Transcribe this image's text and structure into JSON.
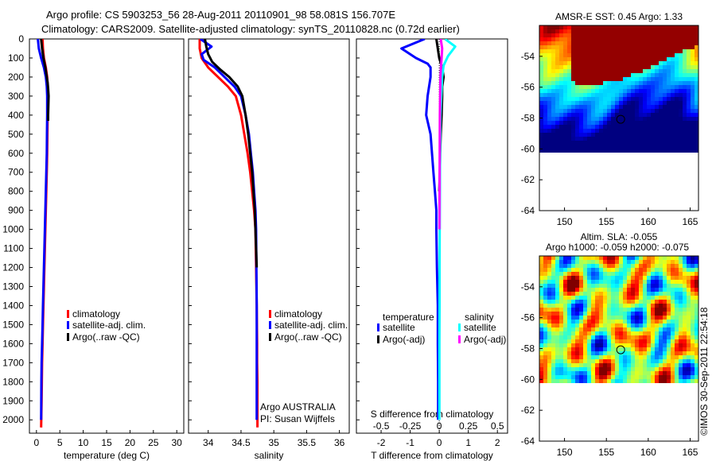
{
  "header": {
    "line1": "Argo profile: CS 5903253_56 28-Aug-2011 20110901_98 58.081S 156.707E",
    "line2": "Climatology: CARS2009. Satellite-adjusted climatology: synTS_20110828.nc (0.72d earlier)"
  },
  "credit": "©IMOS 30-Sep-2011 22:54:18",
  "colors": {
    "climatology": "#ff0000",
    "satellite": "#0000ff",
    "argo": "#000000",
    "sal_satellite": "#00ffff",
    "sal_argo": "#ff00ff"
  },
  "chart_data": [
    {
      "id": "temperature",
      "type": "line",
      "xlabel": "temperature (deg C)",
      "xlim": [
        -1.5,
        31.5
      ],
      "xticks": [
        0,
        5,
        10,
        15,
        20,
        25,
        30
      ],
      "ylim": [
        2070,
        0
      ],
      "yticks": [
        0,
        100,
        200,
        300,
        400,
        500,
        600,
        700,
        800,
        900,
        1000,
        1100,
        1200,
        1300,
        1400,
        1500,
        1600,
        1700,
        1800,
        1900,
        2000
      ],
      "legend": {
        "placement": "lower-right",
        "entries": [
          "climatology",
          "satellite-adj. clim.",
          "Argo(..raw -QC)"
        ]
      },
      "series": [
        {
          "name": "climatology",
          "color": "#ff0000",
          "x": [
            1.3,
            1.4,
            1.6,
            2.0,
            2.3,
            2.4,
            2.4,
            2.4,
            2.35,
            2.3,
            2.2,
            2.1,
            2.0,
            1.9,
            1.8,
            1.7,
            1.6,
            1.5,
            1.4,
            1.3,
            1.2,
            1.15,
            1.1,
            1.0
          ],
          "y": [
            0,
            50,
            100,
            150,
            200,
            250,
            300,
            400,
            500,
            600,
            700,
            800,
            900,
            1000,
            1100,
            1200,
            1300,
            1400,
            1500,
            1600,
            1700,
            1800,
            1900,
            2040
          ]
        },
        {
          "name": "satellite-adj. clim.",
          "color": "#0000ff",
          "x": [
            0.3,
            0.5,
            1.0,
            1.6,
            2.0,
            2.2,
            2.3,
            2.3,
            2.25,
            2.2,
            2.1,
            2.0,
            1.9,
            1.8,
            1.7,
            1.6,
            1.5,
            1.4,
            1.3,
            1.2,
            1.1,
            1.05,
            1.0
          ],
          "y": [
            0,
            50,
            100,
            150,
            200,
            250,
            300,
            400,
            500,
            600,
            700,
            800,
            900,
            1000,
            1100,
            1200,
            1300,
            1400,
            1500,
            1600,
            1700,
            1800,
            2000
          ]
        },
        {
          "name": "Argo(..raw -QC)",
          "color": "#000000",
          "x": [
            1.0,
            1.2,
            1.5,
            1.9,
            2.2,
            2.4,
            2.5,
            2.6,
            2.55,
            2.5,
            2.5
          ],
          "y": [
            0,
            50,
            100,
            150,
            200,
            230,
            260,
            300,
            350,
            400,
            430
          ]
        }
      ]
    },
    {
      "id": "salinity",
      "type": "line",
      "xlabel": "salinity",
      "xlim": [
        33.7,
        36.15
      ],
      "xticks": [
        34,
        34.5,
        35,
        35.5,
        36
      ],
      "ylim": [
        2070,
        0
      ],
      "legend": {
        "placement": "lower-right",
        "entries": [
          "climatology",
          "satellite-adj. clim.",
          "Argo(..raw -QC)"
        ]
      },
      "annotation": {
        "line1": "Argo AUSTRALIA",
        "line2": "PI: Susan Wijffels"
      },
      "series": [
        {
          "name": "climatology",
          "color": "#ff0000",
          "x": [
            33.87,
            33.87,
            33.9,
            34.0,
            34.15,
            34.3,
            34.42,
            34.5,
            34.55,
            34.6,
            34.64,
            34.67,
            34.7,
            34.72,
            34.73,
            34.74,
            34.745,
            34.745,
            34.75,
            34.75,
            34.75
          ],
          "y": [
            0,
            50,
            100,
            150,
            200,
            250,
            300,
            400,
            500,
            600,
            700,
            800,
            900,
            1000,
            1200,
            1400,
            1600,
            1700,
            1800,
            1900,
            2040
          ]
        },
        {
          "name": "satellite-adj. clim.",
          "color": "#0000ff",
          "x": [
            33.88,
            34.05,
            33.9,
            33.93,
            34.1,
            34.25,
            34.4,
            34.5,
            34.57,
            34.62,
            34.65,
            34.68,
            34.7,
            34.72,
            34.73,
            34.735,
            34.74,
            34.74,
            34.74,
            34.74
          ],
          "y": [
            0,
            40,
            80,
            110,
            150,
            200,
            250,
            300,
            400,
            500,
            600,
            700,
            800,
            900,
            1000,
            1200,
            1400,
            1600,
            1800,
            2000
          ]
        },
        {
          "name": "Argo(..raw -QC)",
          "color": "#000000",
          "x": [
            33.95,
            33.97,
            34.0,
            34.06,
            34.18,
            34.32,
            34.45,
            34.52,
            34.57,
            34.61,
            34.64,
            34.67,
            34.69,
            34.71,
            34.72,
            34.73,
            34.74
          ],
          "y": [
            0,
            40,
            80,
            120,
            160,
            200,
            250,
            300,
            400,
            500,
            600,
            700,
            800,
            900,
            1000,
            1100,
            1200
          ]
        }
      ]
    },
    {
      "id": "difference",
      "type": "line",
      "xlabel": "T difference from climatology",
      "x2label": "S difference from climatology",
      "xlim": [
        -2.85,
        2.35
      ],
      "xticks": [
        -2,
        -1,
        0,
        1,
        2
      ],
      "x2lim": [
        -0.7125,
        0.5875
      ],
      "x2ticks": [
        -0.5,
        -0.25,
        0,
        0.25,
        0.5
      ],
      "x2ticklabels": [
        "-0.5",
        "-0.25",
        "0",
        "0.25",
        "0.5"
      ],
      "ylim": [
        2070,
        0
      ],
      "legend": {
        "placement": "lower",
        "temperature_title": "temperature",
        "salinity_title": "salinity",
        "temperature_entries": [
          "satellite",
          "Argo(-adj)"
        ],
        "salinity_entries": [
          "satellite",
          "Argo(-adj)"
        ]
      },
      "series": [
        {
          "name": "temperature satellite",
          "color": "#0000ff",
          "x": [
            -0.5,
            -1.3,
            -0.8,
            -0.4,
            -0.3,
            -0.3,
            -0.4,
            -0.45,
            -0.3,
            -0.25,
            -0.2,
            -0.15,
            -0.1,
            -0.1,
            -0.08,
            -0.05,
            -0.05,
            -0.04,
            -0.04,
            -0.04
          ],
          "y": [
            0,
            50,
            100,
            130,
            150,
            200,
            300,
            400,
            500,
            600,
            700,
            800,
            900,
            1000,
            1200,
            1400,
            1600,
            1800,
            1900,
            2000
          ]
        },
        {
          "name": "temperature Argo(-adj)",
          "color": "#000000",
          "x": [
            -0.1,
            -0.05,
            0.0,
            0.1,
            0.15,
            0.1,
            0.1,
            0.08,
            0.05,
            0.03,
            0.02,
            0.0
          ],
          "y": [
            0,
            50,
            100,
            150,
            200,
            250,
            300,
            400,
            500,
            600,
            700,
            800
          ]
        },
        {
          "name": "salinity satellite",
          "color": "#00ffff",
          "x": [
            0.2,
            0.55,
            0.45,
            0.3,
            0.15,
            0.1,
            0.07,
            0.04,
            0.03,
            0.02,
            0.015,
            0.01,
            0.01,
            0.005,
            0.005,
            0.005,
            0.005
          ],
          "y": [
            0,
            40,
            60,
            90,
            140,
            200,
            300,
            400,
            600,
            800,
            1000,
            1200,
            1400,
            1600,
            1800,
            1900,
            2000
          ]
        },
        {
          "name": "salinity Argo(-adj)",
          "color": "#ff00ff",
          "x": [
            0.05,
            0.1,
            0.08,
            0.06,
            0.04,
            0.03,
            0.02,
            0.015,
            0.01,
            0.005
          ],
          "y": [
            0,
            50,
            100,
            150,
            200,
            300,
            400,
            600,
            800,
            1000
          ]
        }
      ]
    },
    {
      "id": "sst-map",
      "type": "heatmap",
      "title": "AMSR-E SST: 0.45 Argo: 1.33",
      "xlim": [
        147,
        166
      ],
      "ylim": [
        -64,
        -52
      ],
      "data_lat_min": -60,
      "xticks": [
        150,
        155,
        160,
        165
      ],
      "yticks": [
        -54,
        -56,
        -58,
        -60,
        -62,
        -64
      ],
      "profile": {
        "lon": 156.707,
        "lat": -58.081
      }
    },
    {
      "id": "sla-map",
      "type": "heatmap",
      "title": "Altim. SLA: -0.055",
      "subtitle": "Argo h1000: -0.059 h2000: -0.075",
      "xlim": [
        147,
        166
      ],
      "ylim": [
        -64,
        -52
      ],
      "data_lat_min": -60,
      "xticks": [
        150,
        155,
        160,
        165
      ],
      "yticks": [
        -54,
        -56,
        -58,
        -60,
        -62,
        -64
      ],
      "profile": {
        "lon": 156.707,
        "lat": -58.081
      }
    }
  ]
}
